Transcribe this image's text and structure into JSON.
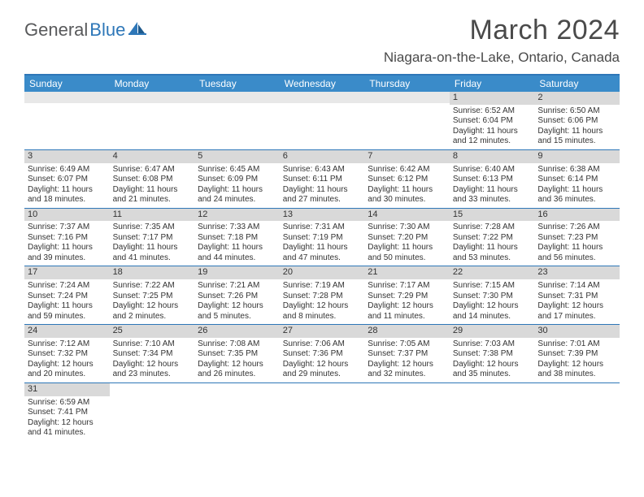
{
  "logo": {
    "part1": "General",
    "part2": "Blue"
  },
  "title": "March 2024",
  "location": "Niagara-on-the-Lake, Ontario, Canada",
  "colors": {
    "header_bg": "#3a8bc9",
    "border": "#2e77b8",
    "daynum_bg": "#d9d9d9",
    "text": "#333333",
    "logo_gray": "#58595b",
    "logo_blue": "#2e77b8"
  },
  "dow": [
    "Sunday",
    "Monday",
    "Tuesday",
    "Wednesday",
    "Thursday",
    "Friday",
    "Saturday"
  ],
  "weeks": [
    [
      {
        "num": "",
        "sunrise": "",
        "sunset": "",
        "daylight": ""
      },
      {
        "num": "",
        "sunrise": "",
        "sunset": "",
        "daylight": ""
      },
      {
        "num": "",
        "sunrise": "",
        "sunset": "",
        "daylight": ""
      },
      {
        "num": "",
        "sunrise": "",
        "sunset": "",
        "daylight": ""
      },
      {
        "num": "",
        "sunrise": "",
        "sunset": "",
        "daylight": ""
      },
      {
        "num": "1",
        "sunrise": "Sunrise: 6:52 AM",
        "sunset": "Sunset: 6:04 PM",
        "daylight": "Daylight: 11 hours and 12 minutes."
      },
      {
        "num": "2",
        "sunrise": "Sunrise: 6:50 AM",
        "sunset": "Sunset: 6:06 PM",
        "daylight": "Daylight: 11 hours and 15 minutes."
      }
    ],
    [
      {
        "num": "3",
        "sunrise": "Sunrise: 6:49 AM",
        "sunset": "Sunset: 6:07 PM",
        "daylight": "Daylight: 11 hours and 18 minutes."
      },
      {
        "num": "4",
        "sunrise": "Sunrise: 6:47 AM",
        "sunset": "Sunset: 6:08 PM",
        "daylight": "Daylight: 11 hours and 21 minutes."
      },
      {
        "num": "5",
        "sunrise": "Sunrise: 6:45 AM",
        "sunset": "Sunset: 6:09 PM",
        "daylight": "Daylight: 11 hours and 24 minutes."
      },
      {
        "num": "6",
        "sunrise": "Sunrise: 6:43 AM",
        "sunset": "Sunset: 6:11 PM",
        "daylight": "Daylight: 11 hours and 27 minutes."
      },
      {
        "num": "7",
        "sunrise": "Sunrise: 6:42 AM",
        "sunset": "Sunset: 6:12 PM",
        "daylight": "Daylight: 11 hours and 30 minutes."
      },
      {
        "num": "8",
        "sunrise": "Sunrise: 6:40 AM",
        "sunset": "Sunset: 6:13 PM",
        "daylight": "Daylight: 11 hours and 33 minutes."
      },
      {
        "num": "9",
        "sunrise": "Sunrise: 6:38 AM",
        "sunset": "Sunset: 6:14 PM",
        "daylight": "Daylight: 11 hours and 36 minutes."
      }
    ],
    [
      {
        "num": "10",
        "sunrise": "Sunrise: 7:37 AM",
        "sunset": "Sunset: 7:16 PM",
        "daylight": "Daylight: 11 hours and 39 minutes."
      },
      {
        "num": "11",
        "sunrise": "Sunrise: 7:35 AM",
        "sunset": "Sunset: 7:17 PM",
        "daylight": "Daylight: 11 hours and 41 minutes."
      },
      {
        "num": "12",
        "sunrise": "Sunrise: 7:33 AM",
        "sunset": "Sunset: 7:18 PM",
        "daylight": "Daylight: 11 hours and 44 minutes."
      },
      {
        "num": "13",
        "sunrise": "Sunrise: 7:31 AM",
        "sunset": "Sunset: 7:19 PM",
        "daylight": "Daylight: 11 hours and 47 minutes."
      },
      {
        "num": "14",
        "sunrise": "Sunrise: 7:30 AM",
        "sunset": "Sunset: 7:20 PM",
        "daylight": "Daylight: 11 hours and 50 minutes."
      },
      {
        "num": "15",
        "sunrise": "Sunrise: 7:28 AM",
        "sunset": "Sunset: 7:22 PM",
        "daylight": "Daylight: 11 hours and 53 minutes."
      },
      {
        "num": "16",
        "sunrise": "Sunrise: 7:26 AM",
        "sunset": "Sunset: 7:23 PM",
        "daylight": "Daylight: 11 hours and 56 minutes."
      }
    ],
    [
      {
        "num": "17",
        "sunrise": "Sunrise: 7:24 AM",
        "sunset": "Sunset: 7:24 PM",
        "daylight": "Daylight: 11 hours and 59 minutes."
      },
      {
        "num": "18",
        "sunrise": "Sunrise: 7:22 AM",
        "sunset": "Sunset: 7:25 PM",
        "daylight": "Daylight: 12 hours and 2 minutes."
      },
      {
        "num": "19",
        "sunrise": "Sunrise: 7:21 AM",
        "sunset": "Sunset: 7:26 PM",
        "daylight": "Daylight: 12 hours and 5 minutes."
      },
      {
        "num": "20",
        "sunrise": "Sunrise: 7:19 AM",
        "sunset": "Sunset: 7:28 PM",
        "daylight": "Daylight: 12 hours and 8 minutes."
      },
      {
        "num": "21",
        "sunrise": "Sunrise: 7:17 AM",
        "sunset": "Sunset: 7:29 PM",
        "daylight": "Daylight: 12 hours and 11 minutes."
      },
      {
        "num": "22",
        "sunrise": "Sunrise: 7:15 AM",
        "sunset": "Sunset: 7:30 PM",
        "daylight": "Daylight: 12 hours and 14 minutes."
      },
      {
        "num": "23",
        "sunrise": "Sunrise: 7:14 AM",
        "sunset": "Sunset: 7:31 PM",
        "daylight": "Daylight: 12 hours and 17 minutes."
      }
    ],
    [
      {
        "num": "24",
        "sunrise": "Sunrise: 7:12 AM",
        "sunset": "Sunset: 7:32 PM",
        "daylight": "Daylight: 12 hours and 20 minutes."
      },
      {
        "num": "25",
        "sunrise": "Sunrise: 7:10 AM",
        "sunset": "Sunset: 7:34 PM",
        "daylight": "Daylight: 12 hours and 23 minutes."
      },
      {
        "num": "26",
        "sunrise": "Sunrise: 7:08 AM",
        "sunset": "Sunset: 7:35 PM",
        "daylight": "Daylight: 12 hours and 26 minutes."
      },
      {
        "num": "27",
        "sunrise": "Sunrise: 7:06 AM",
        "sunset": "Sunset: 7:36 PM",
        "daylight": "Daylight: 12 hours and 29 minutes."
      },
      {
        "num": "28",
        "sunrise": "Sunrise: 7:05 AM",
        "sunset": "Sunset: 7:37 PM",
        "daylight": "Daylight: 12 hours and 32 minutes."
      },
      {
        "num": "29",
        "sunrise": "Sunrise: 7:03 AM",
        "sunset": "Sunset: 7:38 PM",
        "daylight": "Daylight: 12 hours and 35 minutes."
      },
      {
        "num": "30",
        "sunrise": "Sunrise: 7:01 AM",
        "sunset": "Sunset: 7:39 PM",
        "daylight": "Daylight: 12 hours and 38 minutes."
      }
    ],
    [
      {
        "num": "31",
        "sunrise": "Sunrise: 6:59 AM",
        "sunset": "Sunset: 7:41 PM",
        "daylight": "Daylight: 12 hours and 41 minutes."
      },
      {
        "num": "",
        "sunrise": "",
        "sunset": "",
        "daylight": ""
      },
      {
        "num": "",
        "sunrise": "",
        "sunset": "",
        "daylight": ""
      },
      {
        "num": "",
        "sunrise": "",
        "sunset": "",
        "daylight": ""
      },
      {
        "num": "",
        "sunrise": "",
        "sunset": "",
        "daylight": ""
      },
      {
        "num": "",
        "sunrise": "",
        "sunset": "",
        "daylight": ""
      },
      {
        "num": "",
        "sunrise": "",
        "sunset": "",
        "daylight": ""
      }
    ]
  ]
}
